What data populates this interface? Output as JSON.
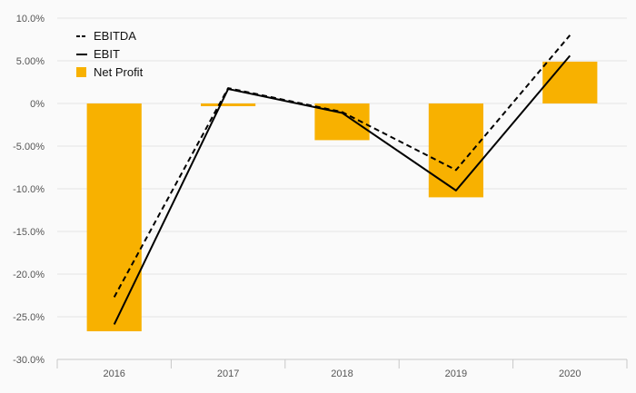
{
  "chart_data": {
    "type": "bar",
    "categories": [
      "2016",
      "2017",
      "2018",
      "2019",
      "2020"
    ],
    "series": [
      {
        "name": "Net Profit",
        "type": "bar",
        "values": [
          -26.7,
          -0.3,
          -4.3,
          -11.0,
          4.9
        ],
        "color": "#F8B100"
      },
      {
        "name": "EBITDA",
        "type": "line",
        "style": "dashed",
        "values": [
          -22.7,
          1.8,
          -1.0,
          -7.8,
          8.0
        ],
        "color": "#000000"
      },
      {
        "name": "EBIT",
        "type": "line",
        "style": "solid",
        "values": [
          -25.9,
          1.7,
          -1.1,
          -10.2,
          5.6
        ],
        "color": "#000000"
      }
    ],
    "y_ticks": [
      "10.0%",
      "5.00%",
      "0%",
      "-5.00%",
      "-10.0%",
      "-15.0%",
      "-20.0%",
      "-25.0%",
      "-30.0%"
    ],
    "ylim": [
      -30,
      10
    ],
    "grid": true,
    "legend_position": "top-left",
    "title": "",
    "xlabel": "",
    "ylabel": ""
  },
  "legend": {
    "items": [
      {
        "label": "EBITDA",
        "marker": "dashed-line"
      },
      {
        "label": "EBIT",
        "marker": "solid-line"
      },
      {
        "label": "Net Profit",
        "marker": "swatch"
      }
    ]
  }
}
